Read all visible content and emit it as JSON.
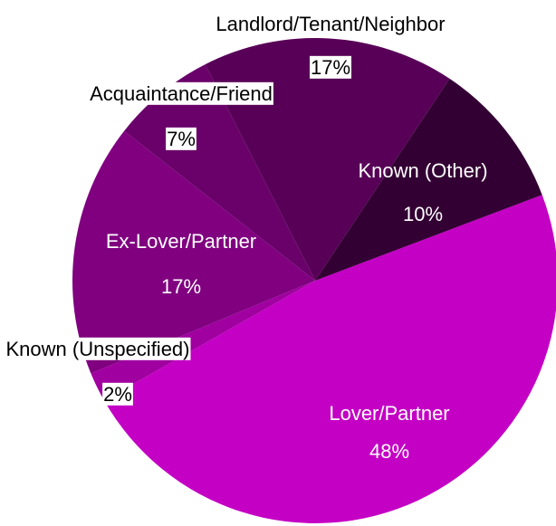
{
  "chart_data": {
    "type": "pie",
    "categories": [
      "Lover/Partner",
      "Known (Unspecified)",
      "Ex-Lover/Partner",
      "Acquaintance/Friend",
      "Landlord/Tenant/Neighbor",
      "Known (Other)"
    ],
    "values": [
      48,
      2,
      17,
      7,
      17,
      10
    ],
    "value_labels": [
      "48%",
      "2%",
      "17%",
      "7%",
      "17%",
      "10%"
    ],
    "colors": [
      "#c400c4",
      "#a000a0",
      "#800080",
      "#6a006a",
      "#580058",
      "#330033"
    ]
  }
}
